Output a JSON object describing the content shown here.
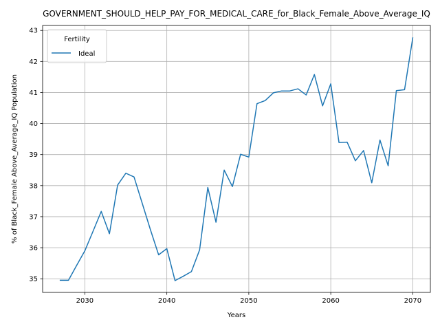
{
  "chart_data": {
    "type": "line",
    "title": "GOVERNMENT_SHOULD_HELP_PAY_FOR_MEDICAL_CARE_for_Black_Female_Above_Average_IQ",
    "xlabel": "Years",
    "ylabel": "% of Black_Female Above_Average_IQ Population",
    "xlim": [
      2024.85,
      2072.15
    ],
    "ylim": [
      34.56,
      43.16
    ],
    "x_ticks": [
      2030,
      2040,
      2050,
      2060,
      2070
    ],
    "y_ticks": [
      35,
      36,
      37,
      38,
      39,
      40,
      41,
      42,
      43
    ],
    "grid": true,
    "legend": {
      "title": "Fertility",
      "placement": "upper-left"
    },
    "colors": {
      "series": "#1f77b4",
      "grid": "#b0b0b0",
      "axis": "#000000"
    },
    "x": [
      2027,
      2028,
      2029,
      2030,
      2031,
      2032,
      2033,
      2034,
      2035,
      2036,
      2037,
      2038,
      2039,
      2040,
      2041,
      2042,
      2043,
      2044,
      2045,
      2046,
      2047,
      2048,
      2049,
      2050,
      2051,
      2052,
      2053,
      2054,
      2055,
      2056,
      2057,
      2058,
      2059,
      2060,
      2061,
      2062,
      2063,
      2064,
      2065,
      2066,
      2067,
      2068,
      2069,
      2070
    ],
    "series": [
      {
        "name": "Ideal",
        "values": [
          34.95,
          34.95,
          35.43,
          35.9,
          36.53,
          37.17,
          36.45,
          38.02,
          38.4,
          38.28,
          37.43,
          36.58,
          35.77,
          35.97,
          34.94,
          35.08,
          35.23,
          35.93,
          37.94,
          36.82,
          38.5,
          37.97,
          39.01,
          38.92,
          40.64,
          40.74,
          40.99,
          41.05,
          41.05,
          41.12,
          40.92,
          41.58,
          40.57,
          41.28,
          39.39,
          39.4,
          38.8,
          39.13,
          38.09,
          39.47,
          38.64,
          41.06,
          41.09,
          42.76
        ]
      }
    ]
  }
}
